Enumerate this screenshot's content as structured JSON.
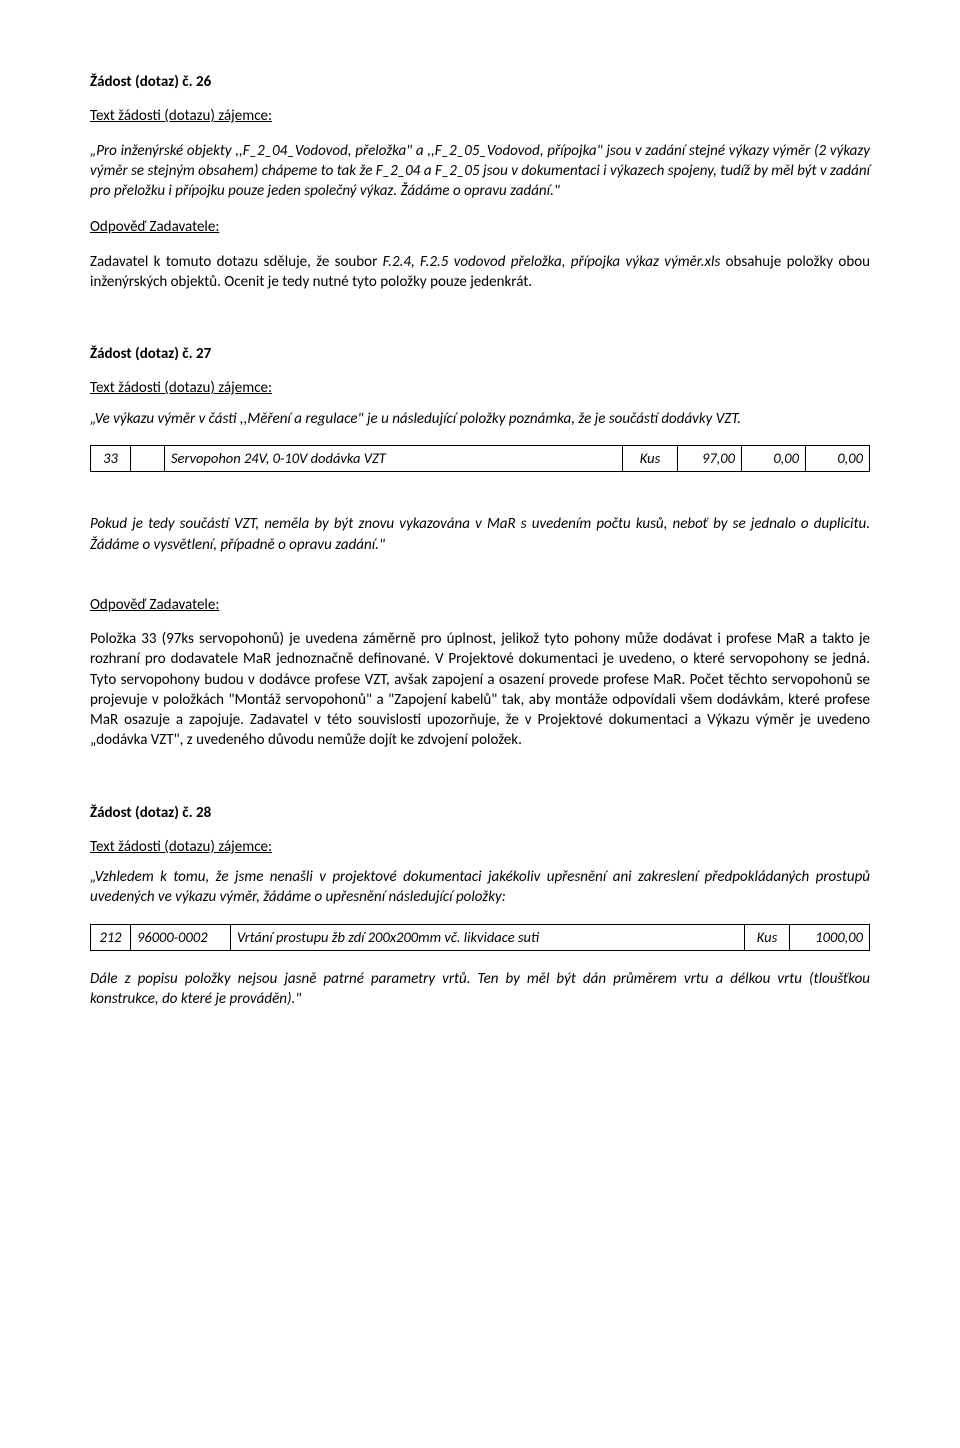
{
  "s26": {
    "heading": "Žádost (dotaz) č. 26",
    "sub": "Text žádosti (dotazu) zájemce:",
    "p1_a": "„Pro inženýrské objekty ,,F_2_04_Vodovod, přeložka\" a ,,F_2_05_Vodovod, přípojka\" jsou v zadání stejné výkazy výměr (2 výkazy výměr se stejným obsahem) chápeme ",
    "p1_b": "to tak že F_2_04 a F_2_05 jsou v dokumentaci i výkazech spojeny, tudíž by měl být v zadání pro přeložku i přípojku pouze jeden společný výkaz. Žádáme o opravu zadání.\"",
    "ans_h": "Odpověď Zadavatele:",
    "ans_a": "Zadavatel k tomuto dotazu sděluje, že soubor ",
    "ans_b": "F.2.4, F.2.5 vodovod přeložka, přípojka výkaz výměr.xls",
    "ans_c": " obsahuje položky obou inženýrských objektů. Ocenit je tedy nutné tyto položky pouze jedenkrát."
  },
  "s27": {
    "heading": "Žádost (dotaz) č. 27",
    "sub": "Text žádosti (dotazu) zájemce:",
    "p1": "„Ve výkazu výměr v části ,,Měření a regulace\" je u následující položky poznámka, že je součástí dodávky VZT.",
    "table": {
      "c1": "33",
      "c2": "",
      "c3": "Servopohon 24V, 0-10V dodávka VZT",
      "c4": "Kus",
      "c5": "97,00",
      "c6": "0,00",
      "c7": "0,00"
    },
    "p2": "Pokud je tedy součástí VZT, neměla by být znovu vykazována v MaR s uvedením počtu kusů, neboť by se jednalo o duplicitu. Žádáme o vysvětlení, případně o opravu zadání.\"",
    "ans_h": "Odpověď Zadavatele:",
    "ans": "Položka 33 (97ks servopohonů) je uvedena záměrně pro úplnost, jelikož tyto pohony může dodávat i profese MaR a takto je rozhraní pro dodavatele MaR jednoznačně definované. V Projektové dokumentaci je uvedeno, o které servopohony se jedná. Tyto servopohony budou v dodávce profese VZT, avšak zapojení a osazení provede profese MaR. Počet těchto servopohonů se projevuje v položkách \"Montáž servopohonů\" a \"Zapojení kabelů\" tak, aby montáže odpovídali všem dodávkám, které profese MaR osazuje a zapojuje. Zadavatel v této souvislosti upozorňuje, že v Projektové dokumentaci a Výkazu výměr je uvedeno „dodávka VZT\", z uvedeného důvodu nemůže dojít ke zdvojení položek."
  },
  "s28": {
    "heading": "Žádost (dotaz) č. 28",
    "sub": "Text žádosti (dotazu) zájemce:",
    "p1": "„Vzhledem k tomu, že jsme nenašli v projektové dokumentaci jakékoliv upřesnění ani zakreslení předpokládaných prostupů uvedených ve výkazu výměr, žádáme o upřesnění následující položky:",
    "table": {
      "c1": "212",
      "c2": "96000-0002",
      "c3": "Vrtání prostupu žb zdí 200x200mm vč. likvidace suti",
      "c4": "Kus",
      "c5": "1000,00"
    },
    "p2": "Dále z popisu položky nejsou jasně patrné parametry vrtů. Ten by měl být dán průměrem vrtu a délkou vrtu (tloušťkou konstrukce, do které je prováděn).\""
  }
}
